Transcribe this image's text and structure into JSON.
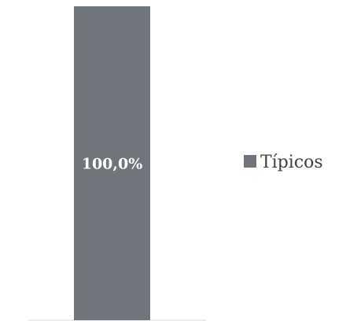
{
  "chart_data": {
    "type": "bar",
    "stacked": true,
    "categories": [
      ""
    ],
    "series": [
      {
        "name": "Típicos",
        "values": [
          100.0
        ],
        "data_labels": [
          "100,0%"
        ],
        "color": "#6f757a"
      }
    ],
    "ylim": [
      0,
      100
    ],
    "grid": false,
    "legend_position": "right",
    "data_label_color": "#ffffff",
    "axis_color": "#d9d9d9",
    "legend_text_color": "#404040"
  }
}
